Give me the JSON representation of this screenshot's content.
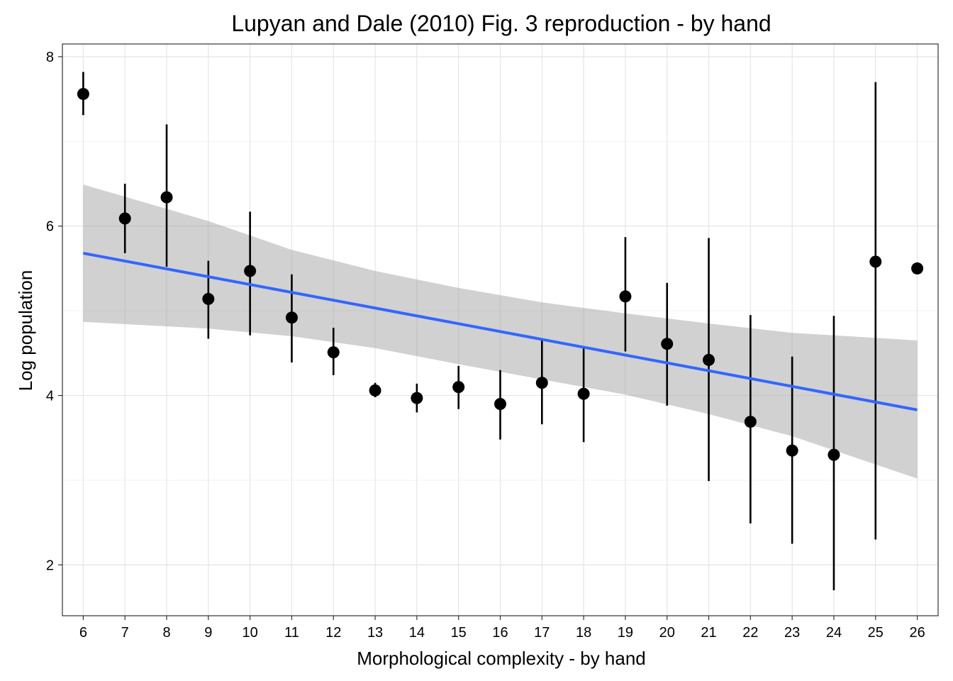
{
  "chart_data": {
    "type": "scatter",
    "title": "Lupyan and Dale (2010) Fig. 3 reproduction - by hand",
    "xlabel": "Morphological complexity - by hand",
    "ylabel": "Log population",
    "xlim": [
      5.5,
      26.5
    ],
    "ylim": [
      1.4,
      8.15
    ],
    "x_ticks": [
      6,
      7,
      8,
      9,
      10,
      11,
      12,
      13,
      14,
      15,
      16,
      17,
      18,
      19,
      20,
      21,
      22,
      23,
      24,
      25,
      26
    ],
    "y_ticks": [
      2,
      4,
      6,
      8
    ],
    "grid": true,
    "legend": "none",
    "points": [
      {
        "x": 6,
        "y": 7.56,
        "ymin": 7.31,
        "ymax": 7.82
      },
      {
        "x": 7,
        "y": 6.09,
        "ymin": 5.68,
        "ymax": 6.5
      },
      {
        "x": 8,
        "y": 6.34,
        "ymin": 5.52,
        "ymax": 7.2
      },
      {
        "x": 9,
        "y": 5.14,
        "ymin": 4.67,
        "ymax": 5.59
      },
      {
        "x": 10,
        "y": 5.47,
        "ymin": 4.71,
        "ymax": 6.17
      },
      {
        "x": 11,
        "y": 4.92,
        "ymin": 4.39,
        "ymax": 5.43
      },
      {
        "x": 12,
        "y": 4.51,
        "ymin": 4.24,
        "ymax": 4.8
      },
      {
        "x": 13,
        "y": 4.06,
        "ymin": 3.98,
        "ymax": 4.15
      },
      {
        "x": 14,
        "y": 3.97,
        "ymin": 3.8,
        "ymax": 4.14
      },
      {
        "x": 15,
        "y": 4.1,
        "ymin": 3.84,
        "ymax": 4.35
      },
      {
        "x": 16,
        "y": 3.9,
        "ymin": 3.48,
        "ymax": 4.3
      },
      {
        "x": 17,
        "y": 4.15,
        "ymin": 3.66,
        "ymax": 4.65
      },
      {
        "x": 18,
        "y": 4.02,
        "ymin": 3.45,
        "ymax": 4.57
      },
      {
        "x": 19,
        "y": 5.17,
        "ymin": 4.52,
        "ymax": 5.87
      },
      {
        "x": 20,
        "y": 4.61,
        "ymin": 3.88,
        "ymax": 5.33
      },
      {
        "x": 21,
        "y": 4.42,
        "ymin": 2.99,
        "ymax": 5.86
      },
      {
        "x": 22,
        "y": 3.69,
        "ymin": 2.49,
        "ymax": 4.95
      },
      {
        "x": 23,
        "y": 3.35,
        "ymin": 2.25,
        "ymax": 4.46
      },
      {
        "x": 24,
        "y": 3.3,
        "ymin": 1.7,
        "ymax": 4.94
      },
      {
        "x": 25,
        "y": 5.58,
        "ymin": 2.3,
        "ymax": 7.7
      },
      {
        "x": 26,
        "y": 5.5
      }
    ],
    "fit": {
      "type": "linear",
      "color": "#3366FF",
      "x": [
        6,
        26
      ],
      "y": [
        5.68,
        3.83
      ],
      "band_color": "#999999",
      "band_lower": [
        {
          "x": 6,
          "y": 4.87
        },
        {
          "x": 9,
          "y": 4.79
        },
        {
          "x": 11,
          "y": 4.7
        },
        {
          "x": 13,
          "y": 4.56
        },
        {
          "x": 15,
          "y": 4.37
        },
        {
          "x": 17,
          "y": 4.19
        },
        {
          "x": 19,
          "y": 4.01
        },
        {
          "x": 21,
          "y": 3.78
        },
        {
          "x": 23,
          "y": 3.52
        },
        {
          "x": 26,
          "y": 3.02
        }
      ],
      "band_upper": [
        {
          "x": 6,
          "y": 6.49
        },
        {
          "x": 9,
          "y": 6.06
        },
        {
          "x": 11,
          "y": 5.72
        },
        {
          "x": 13,
          "y": 5.47
        },
        {
          "x": 15,
          "y": 5.27
        },
        {
          "x": 17,
          "y": 5.1
        },
        {
          "x": 19,
          "y": 4.97
        },
        {
          "x": 21,
          "y": 4.85
        },
        {
          "x": 23,
          "y": 4.74
        },
        {
          "x": 26,
          "y": 4.65
        }
      ]
    }
  }
}
